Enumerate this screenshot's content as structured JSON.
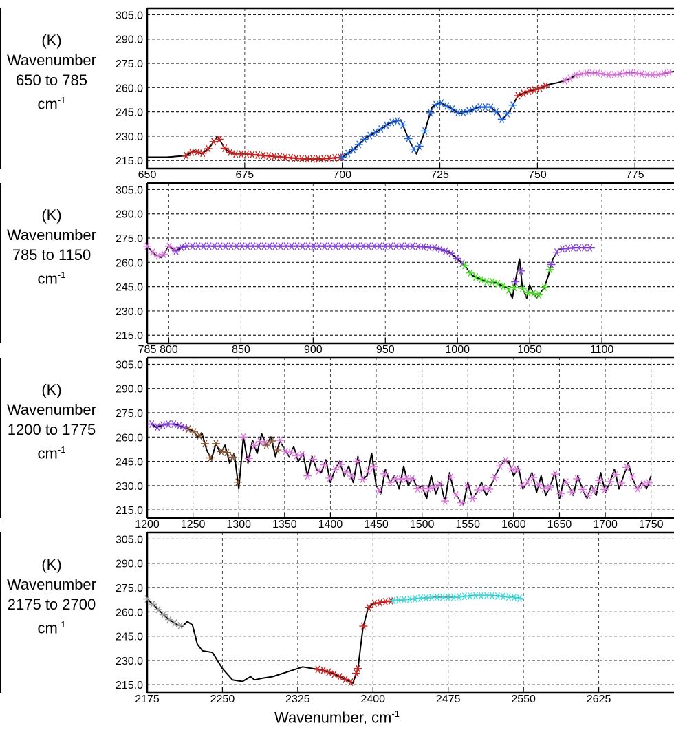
{
  "chart_data": [
    {
      "type": "line",
      "ylabel_unit": "(K)",
      "ylabel_name": "Wavenumber",
      "ylabel_range": "650 to 785",
      "ylabel_unit2": "cm",
      "ylabel_exp": "-1",
      "ylim": [
        210,
        309
      ],
      "yticks": [
        "215.0",
        "230.0",
        "245.0",
        "260.0",
        "275.0",
        "290.0",
        "305.0"
      ],
      "xlim": [
        650,
        785
      ],
      "xticks": [
        650,
        675,
        700,
        725,
        750,
        775
      ],
      "grid": true,
      "x": [
        650,
        655,
        660,
        662,
        664,
        666,
        668,
        670,
        672,
        675,
        680,
        685,
        690,
        695,
        700,
        703,
        706,
        709,
        712,
        715,
        717,
        719,
        721,
        723,
        725,
        728,
        730,
        733,
        735,
        738,
        740,
        741,
        743,
        745,
        748,
        750,
        753,
        755,
        758,
        760,
        763,
        765,
        768,
        770,
        773,
        775,
        778,
        781,
        785
      ],
      "y": [
        217,
        217,
        218,
        221,
        219,
        223,
        230,
        222,
        219,
        219,
        218,
        217,
        216,
        216,
        217,
        222,
        229,
        233,
        238,
        240,
        228,
        219,
        232,
        248,
        251,
        247,
        244,
        246,
        248,
        248,
        244,
        240,
        246,
        255,
        258,
        259,
        262,
        263,
        265,
        268,
        269,
        269,
        268,
        268,
        269,
        269,
        268,
        268,
        270
      ],
      "markers": [
        {
          "color": "#cc2222",
          "from": 660,
          "to": 700
        },
        {
          "color": "#2266dd",
          "from": 700,
          "to": 745
        },
        {
          "color": "#cc2222",
          "from": 745,
          "to": 753
        },
        {
          "color": "#dd77dd",
          "from": 757,
          "to": 785
        }
      ]
    },
    {
      "type": "line",
      "ylabel_unit": "(K)",
      "ylabel_name": "Wavenumber",
      "ylabel_range": "785 to 1150",
      "ylabel_unit2": "cm",
      "ylabel_exp": "-1",
      "ylim": [
        210,
        309
      ],
      "yticks": [
        "215.0",
        "230.0",
        "245.0",
        "260.0",
        "275.0",
        "290.0",
        "305.0"
      ],
      "xlim": [
        785,
        1150
      ],
      "xticks": [
        785,
        800,
        850,
        900,
        950,
        1000,
        1050,
        1100
      ],
      "grid": true,
      "x": [
        785,
        790,
        795,
        800,
        805,
        810,
        830,
        850,
        880,
        910,
        940,
        970,
        985,
        995,
        1000,
        1005,
        1010,
        1015,
        1020,
        1025,
        1030,
        1035,
        1038,
        1040,
        1043,
        1045,
        1048,
        1050,
        1053,
        1055,
        1058,
        1060,
        1063,
        1066,
        1070,
        1080,
        1095
      ],
      "y": [
        270,
        265,
        263,
        270,
        267,
        270,
        270,
        270,
        270,
        270,
        270,
        270,
        269,
        266,
        262,
        258,
        252,
        250,
        248,
        248,
        246,
        244,
        238,
        248,
        262,
        244,
        238,
        246,
        240,
        238,
        242,
        244,
        252,
        262,
        268,
        269,
        269
      ],
      "markers": [
        {
          "color": "#dd77dd",
          "from": 785,
          "to": 805
        },
        {
          "color": "#8844dd",
          "from": 805,
          "to": 1005
        },
        {
          "color": "#44dd22",
          "from": 1005,
          "to": 1040
        },
        {
          "color": "#8844dd",
          "from": 1040,
          "to": 1045
        },
        {
          "color": "#44dd22",
          "from": 1045,
          "to": 1065
        },
        {
          "color": "#8844dd",
          "from": 1065,
          "to": 1095
        }
      ]
    },
    {
      "type": "line",
      "ylabel_unit": "(K)",
      "ylabel_name": "Wavenumber",
      "ylabel_range": "1200 to 1775",
      "ylabel_unit2": "cm",
      "ylabel_exp": "-1",
      "ylim": [
        210,
        309
      ],
      "yticks": [
        "215.0",
        "230.0",
        "245.0",
        "260.0",
        "275.0",
        "290.0",
        "305.0"
      ],
      "xlim": [
        1200,
        1775
      ],
      "xticks": [
        1200,
        1250,
        1300,
        1350,
        1400,
        1450,
        1500,
        1550,
        1600,
        1650,
        1700,
        1750
      ],
      "grid": true,
      "x": [
        1205,
        1210,
        1220,
        1230,
        1240,
        1250,
        1255,
        1260,
        1265,
        1270,
        1275,
        1280,
        1285,
        1290,
        1295,
        1300,
        1305,
        1310,
        1315,
        1320,
        1325,
        1330,
        1335,
        1340,
        1345,
        1350,
        1355,
        1360,
        1365,
        1370,
        1375,
        1380,
        1385,
        1390,
        1395,
        1400,
        1405,
        1410,
        1415,
        1420,
        1425,
        1430,
        1435,
        1440,
        1445,
        1450,
        1455,
        1460,
        1465,
        1470,
        1475,
        1480,
        1485,
        1490,
        1495,
        1500,
        1505,
        1510,
        1515,
        1520,
        1525,
        1530,
        1535,
        1540,
        1545,
        1550,
        1555,
        1560,
        1565,
        1570,
        1575,
        1580,
        1585,
        1590,
        1595,
        1600,
        1605,
        1610,
        1615,
        1620,
        1625,
        1630,
        1635,
        1640,
        1645,
        1650,
        1655,
        1660,
        1665,
        1670,
        1675,
        1680,
        1685,
        1690,
        1695,
        1700,
        1705,
        1710,
        1715,
        1720,
        1725,
        1730,
        1735,
        1740,
        1745,
        1750
      ],
      "y": [
        268,
        266,
        268,
        268,
        266,
        264,
        260,
        262,
        252,
        246,
        256,
        250,
        255,
        244,
        250,
        228,
        260,
        244,
        258,
        250,
        262,
        255,
        260,
        248,
        258,
        252,
        248,
        254,
        245,
        250,
        236,
        248,
        240,
        238,
        246,
        232,
        240,
        245,
        236,
        242,
        232,
        248,
        234,
        236,
        250,
        230,
        225,
        240,
        232,
        236,
        228,
        242,
        230,
        235,
        228,
        230,
        222,
        236,
        225,
        232,
        220,
        238,
        226,
        222,
        218,
        232,
        222,
        226,
        232,
        224,
        230,
        236,
        242,
        246,
        244,
        236,
        242,
        228,
        232,
        238,
        226,
        236,
        224,
        230,
        238,
        222,
        234,
        230,
        224,
        236,
        228,
        222,
        230,
        224,
        238,
        226,
        232,
        240,
        228,
        236,
        244,
        234,
        228,
        232,
        228,
        236
      ],
      "markers": [
        {
          "color": "#8844dd",
          "from": 1205,
          "to": 1245
        },
        {
          "color": "#885533",
          "from": 1245,
          "to": 1305
        },
        {
          "color": "#dd77dd",
          "from": 1305,
          "to": 1330
        },
        {
          "color": "#885533",
          "from": 1330,
          "to": 1345
        },
        {
          "color": "#dd77dd",
          "from": 1345,
          "to": 1750
        }
      ]
    },
    {
      "type": "line",
      "ylabel_unit": "(K)",
      "ylabel_name": "Wavenumber",
      "ylabel_range": "2175 to 2700",
      "ylabel_unit2": "cm",
      "ylabel_exp": "-1",
      "ylim": [
        210,
        309
      ],
      "yticks": [
        "215.0",
        "230.0",
        "245.0",
        "260.0",
        "275.0",
        "290.0",
        "305.0"
      ],
      "xlim": [
        2175,
        2700
      ],
      "xticks": [
        2175,
        2250,
        2325,
        2400,
        2475,
        2550,
        2625
      ],
      "grid": true,
      "x": [
        2175,
        2185,
        2195,
        2205,
        2210,
        2215,
        2220,
        2225,
        2230,
        2240,
        2250,
        2260,
        2270,
        2278,
        2282,
        2290,
        2300,
        2310,
        2320,
        2330,
        2340,
        2350,
        2360,
        2370,
        2380,
        2385,
        2390,
        2395,
        2400,
        2410,
        2420,
        2440,
        2460,
        2480,
        2500,
        2520,
        2540,
        2550
      ],
      "y": [
        268,
        262,
        256,
        252,
        251,
        254,
        252,
        240,
        236,
        235,
        225,
        218,
        217,
        220,
        218,
        219,
        220,
        222,
        224,
        226,
        225,
        224,
        222,
        219,
        216,
        225,
        250,
        262,
        265,
        266,
        267,
        268,
        269,
        269,
        270,
        270,
        269,
        268
      ],
      "markers": [
        {
          "color": "#999999",
          "from": 2175,
          "to": 2210
        },
        {
          "color": "#cc2222",
          "from": 2345,
          "to": 2385
        },
        {
          "color": "#cc2222",
          "from": 2385,
          "to": 2420
        },
        {
          "color": "#44dddd",
          "from": 2420,
          "to": 2550
        }
      ]
    }
  ],
  "xlabel_text": "Wavenumber, cm",
  "xlabel_exp": "-1",
  "colors": {
    "line": "#000000",
    "grid": "#333333"
  }
}
